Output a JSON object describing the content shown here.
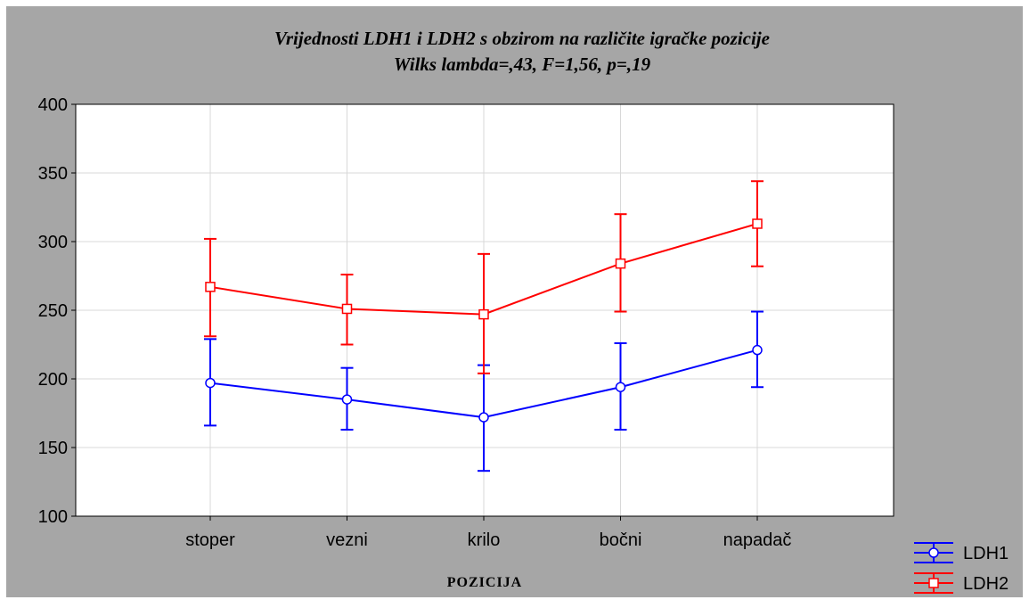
{
  "chart_data": {
    "type": "line",
    "title": "Vrijednosti LDH1 i LDH2 s obzirom na različite igračke pozicije",
    "subtitle": "Wilks lambda=,43, F=1,56, p=,19",
    "xlabel": "POZICIJA",
    "ylabel": "",
    "categories": [
      "stoper",
      "vezni",
      "krilo",
      "bočni",
      "napadač"
    ],
    "ylim": [
      100,
      400
    ],
    "yticks": [
      100,
      150,
      200,
      250,
      300,
      350,
      400
    ],
    "ytick_labels": [
      "100",
      "150",
      "200",
      "250",
      "300",
      "350",
      "400"
    ],
    "grid": true,
    "legend_position": "bottom-right",
    "series": [
      {
        "name": "LDH1",
        "color": "#0000ff",
        "marker": "circle",
        "values": [
          197,
          185,
          172,
          194,
          221
        ],
        "err_low": [
          166,
          163,
          133,
          163,
          194
        ],
        "err_high": [
          229,
          208,
          210,
          226,
          249
        ]
      },
      {
        "name": "LDH2",
        "color": "#ff0000",
        "marker": "square",
        "values": [
          267,
          251,
          247,
          284,
          313
        ],
        "err_low": [
          231,
          225,
          204,
          249,
          282
        ],
        "err_high": [
          302,
          276,
          291,
          320,
          344
        ]
      }
    ],
    "colors": {
      "background": "#a6a6a6",
      "plot_area": "#ffffff",
      "grid": "#d8d8d8"
    }
  }
}
